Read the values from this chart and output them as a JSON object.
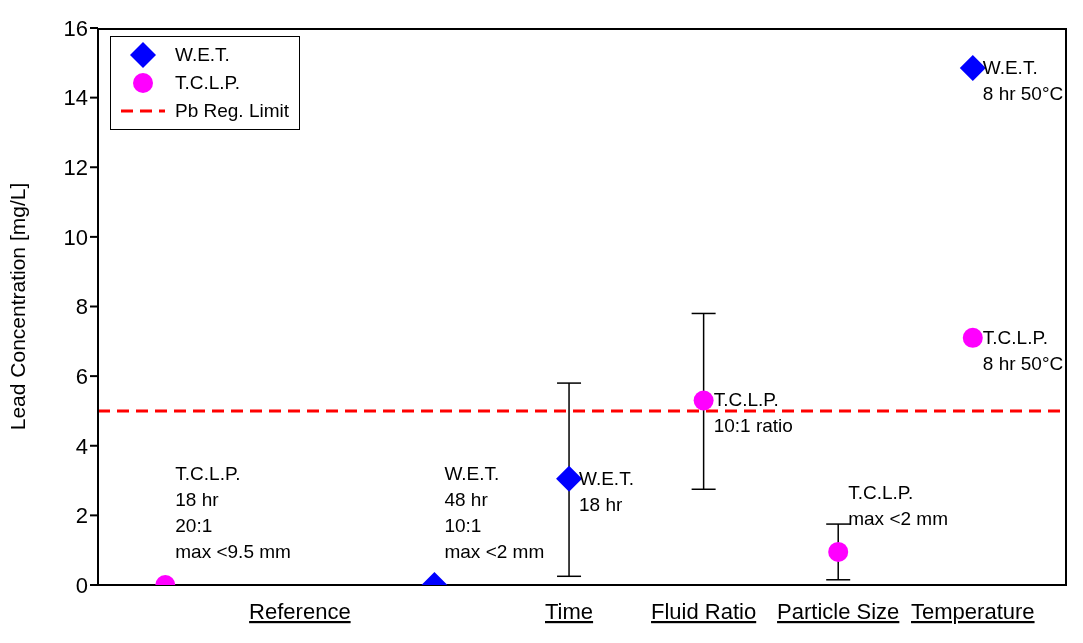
{
  "chart_data": {
    "type": "scatter",
    "ylabel": "Lead Concentration [mg/L]",
    "categories": [
      null,
      "Reference",
      null,
      "Time",
      "Fluid Ratio",
      "Particle Size",
      "Temperature"
    ],
    "series": [
      {
        "name": "W.E.T.",
        "color": "#0000ff",
        "marker": "diamond",
        "values": [
          null,
          null,
          0,
          3.05,
          null,
          null,
          14.85
        ],
        "errors": [
          null,
          null,
          null,
          [
            0.25,
            5.8
          ],
          null,
          null,
          null
        ]
      },
      {
        "name": "T.C.L.P.",
        "color": "#ff00ff",
        "marker": "circle",
        "values": [
          0,
          null,
          null,
          null,
          5.3,
          0.95,
          7.1
        ],
        "errors": [
          null,
          null,
          null,
          null,
          [
            2.75,
            7.8
          ],
          [
            0.15,
            1.75
          ],
          null
        ]
      }
    ],
    "ylim": [
      0,
      16
    ],
    "yticks": [
      0,
      2,
      4,
      6,
      8,
      10,
      12,
      14,
      16
    ],
    "grid": false,
    "legend": "top left",
    "ref_lines": [
      {
        "axis": "y",
        "value": 5,
        "label": "Pb Reg. Limit",
        "color": "#ff0000",
        "line_style": "dashed"
      }
    ],
    "annotations": [
      "T.C.L.P.\n18 hr\n20:1\nmax <9.5 mm",
      "W.E.T.\n48 hr\n10:1\nmax <2 mm",
      {
        "text": "W.E.T.\n18 hr",
        "x": "Time",
        "y": 3.05
      },
      {
        "text": "T.C.L.P.\n10:1 ratio",
        "x": "Fluid Ratio",
        "y": 5.3
      },
      {
        "text": "T.C.L.P.\nmax <2 mm",
        "x": "Particle Size",
        "y": 0.95
      },
      {
        "text": "W.E.T.\n8 hr 50°C",
        "x": "Temperature",
        "y": 14.85
      },
      {
        "text": "T.C.L.P.\n8 hr 50°C",
        "x": "Temperature",
        "y": 7.1
      }
    ]
  }
}
